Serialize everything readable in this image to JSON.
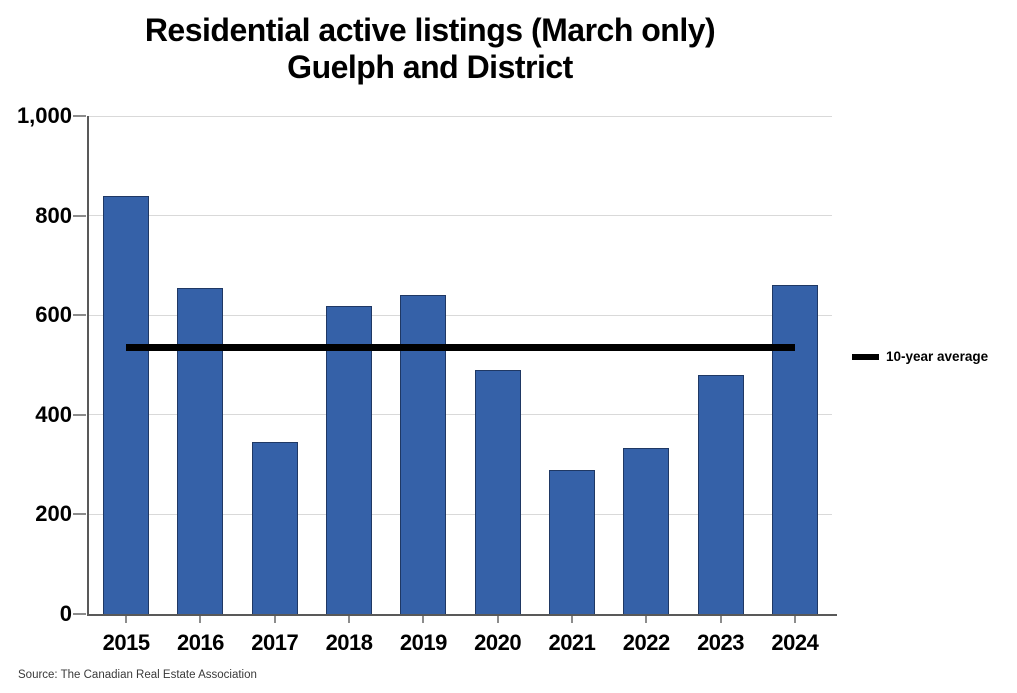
{
  "title": {
    "line1": "Residential active listings (March only)",
    "line2": "Guelph and District"
  },
  "legend": {
    "label": "10-year average"
  },
  "source": "Source: The Canadian Real Estate Association",
  "colors": {
    "bar_fill": "#3561A8",
    "bar_border": "#1F3864",
    "gridline": "#D9D9D9",
    "axis": "#595959",
    "tick": "#8C8C8C",
    "average_line": "#000000"
  },
  "chart_data": {
    "type": "bar",
    "title": "Residential active listings (March only) — Guelph and District",
    "categories": [
      "2015",
      "2016",
      "2017",
      "2018",
      "2019",
      "2020",
      "2021",
      "2022",
      "2023",
      "2024"
    ],
    "values": [
      840,
      655,
      345,
      618,
      640,
      490,
      290,
      333,
      480,
      660
    ],
    "series_name": "Residential active listings",
    "xlabel": "",
    "ylabel": "",
    "ylim": [
      0,
      1000
    ],
    "y_ticks": [
      0,
      200,
      400,
      600,
      800,
      1000
    ],
    "y_tick_labels": [
      "0",
      "200",
      "400",
      "600",
      "800",
      "1,000"
    ],
    "grid": true,
    "bar_color": "#3561A8",
    "average_line": {
      "label": "10-year average",
      "value": 535,
      "color": "#000000"
    },
    "legend_position": "right"
  }
}
